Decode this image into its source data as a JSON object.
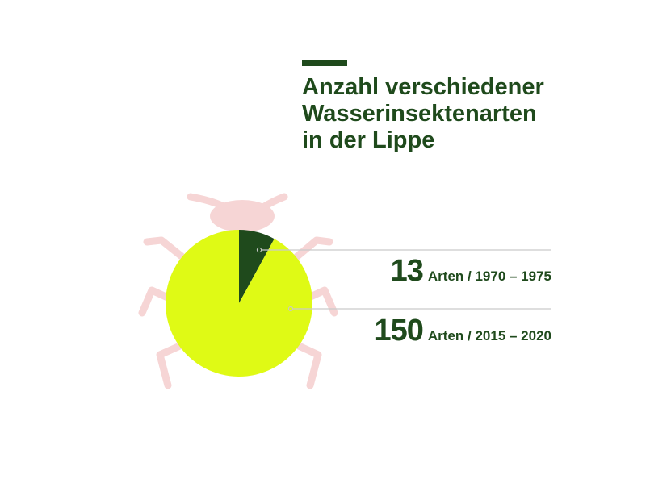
{
  "title_lines": [
    "Anzahl verschiedener",
    "Wasserinsektenarten",
    "in der Lippe"
  ],
  "colors": {
    "dark_green": "#1f4a1c",
    "lime": "#dffa15",
    "bug_pink": "#f6d5d5",
    "leader_line": "#c9c9c9"
  },
  "icons": [
    "beetle-icon"
  ],
  "chart_data": {
    "type": "pie",
    "title": "Anzahl verschiedener Wasserinsektenarten in der Lippe",
    "slices": [
      {
        "value": 13,
        "value_label": "13",
        "label": "Arten / 1970 – 1975",
        "color": "#1f4a1c"
      },
      {
        "value": 150,
        "value_label": "150",
        "label": "Arten / 2015 – 2020",
        "color": "#dffa15"
      }
    ]
  }
}
